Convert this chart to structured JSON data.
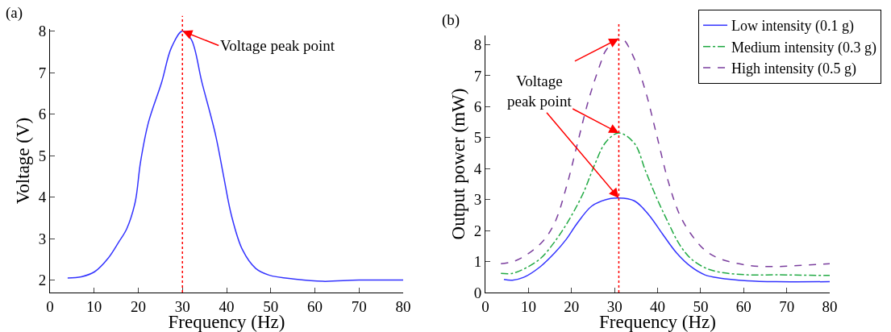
{
  "chart_data": [
    {
      "type": "line",
      "title": "(a)",
      "xlabel": "Frequency (Hz)",
      "ylabel": "Voltage (V)",
      "xlim": [
        0,
        80
      ],
      "xticks": [
        0,
        10,
        20,
        30,
        40,
        50,
        60,
        70,
        80
      ],
      "ylim": [
        1.7,
        8.05
      ],
      "yticks": [
        2,
        3,
        4,
        5,
        6,
        7,
        8
      ],
      "grid": false,
      "legend": false,
      "series": [
        {
          "color": "#3333ff",
          "line_style": "solid",
          "x": [
            4,
            7.1,
            10.1,
            13.2,
            15.6,
            17.4,
            19.3,
            20.5,
            22.3,
            25.3,
            27.5,
            30,
            32,
            34.4,
            37.5,
            39.3,
            41.1,
            43.6,
            46.6,
            49.6,
            55.7,
            61.8,
            70,
            80
          ],
          "values": [
            2.05,
            2.08,
            2.2,
            2.53,
            2.92,
            3.24,
            3.88,
            4.84,
            5.8,
            6.77,
            7.6,
            8,
            7.8,
            6.77,
            5.5,
            4.52,
            3.56,
            2.73,
            2.28,
            2.12,
            2.02,
            1.97,
            2.0,
            2.0
          ]
        }
      ],
      "ref_lines": [
        {
          "axis": "x",
          "value": 30,
          "color": "#ff0000",
          "line_style": "dotted"
        }
      ],
      "annotations": [
        {
          "text": "Voltage peak point",
          "x": 30,
          "y": 8
        }
      ]
    },
    {
      "type": "line",
      "title": "(b)",
      "xlabel": "Frequency (Hz)",
      "ylabel": "Output power (mW)",
      "xlim": [
        0,
        80
      ],
      "xticks": [
        0,
        10,
        20,
        30,
        40,
        50,
        60,
        70,
        80
      ],
      "ylim": [
        0,
        8.3
      ],
      "yticks": [
        0,
        1,
        2,
        3,
        4,
        5,
        6,
        7,
        8
      ],
      "grid": false,
      "legend": "top right",
      "series": [
        {
          "name": "Low intensity (0.1 g)",
          "color": "#3333ff",
          "line_style": "solid",
          "x": [
            4.3,
            6.3,
            8.9,
            12.8,
            16.1,
            18.8,
            21.4,
            24.7,
            28,
            31,
            34.6,
            37.9,
            41.1,
            44.4,
            47.7,
            51,
            54.3,
            60.9,
            67.5,
            80
          ],
          "values": [
            0.42,
            0.4,
            0.49,
            0.84,
            1.28,
            1.72,
            2.25,
            2.79,
            3.0,
            3.05,
            2.96,
            2.52,
            1.9,
            1.28,
            0.84,
            0.57,
            0.47,
            0.38,
            0.35,
            0.35
          ]
        },
        {
          "name": "Medium intensity (0.3 g)",
          "color": "#22aa44",
          "line_style": "dashdot",
          "x": [
            3.6,
            6.3,
            9.5,
            12.8,
            16.1,
            19.4,
            22.7,
            25.3,
            28,
            31,
            34.6,
            37.2,
            39.8,
            42.5,
            45.1,
            47.7,
            51,
            54.3,
            60.9,
            67.5,
            80
          ],
          "values": [
            0.62,
            0.62,
            0.8,
            1.1,
            1.64,
            2.34,
            3.2,
            4.1,
            4.86,
            5.15,
            4.82,
            3.93,
            3.05,
            2.25,
            1.55,
            1.1,
            0.8,
            0.66,
            0.57,
            0.57,
            0.55
          ]
        },
        {
          "name": "High intensity (0.5 g)",
          "color": "#7b3f9e",
          "line_style": "dashed",
          "x": [
            3.6,
            6.9,
            10.2,
            13.5,
            16.1,
            18.8,
            21.4,
            24,
            26.7,
            28,
            31,
            32,
            34.6,
            37.2,
            39.8,
            42.5,
            45.1,
            47.7,
            51,
            54.3,
            60.9,
            67.5,
            74,
            80
          ],
          "values": [
            0.93,
            1.02,
            1.28,
            1.68,
            2.25,
            3.4,
            4.82,
            6.23,
            7.38,
            7.82,
            8.2,
            8.18,
            7.55,
            6.5,
            5.08,
            3.58,
            2.52,
            1.9,
            1.37,
            1.1,
            0.88,
            0.84,
            0.88,
            0.93
          ]
        }
      ],
      "ref_lines": [
        {
          "axis": "x",
          "value": 31,
          "color": "#ff0000",
          "line_style": "dotted"
        }
      ],
      "annotations": [
        {
          "text": "Voltage\npeak point",
          "x": 31,
          "y": 5.15
        }
      ]
    }
  ]
}
